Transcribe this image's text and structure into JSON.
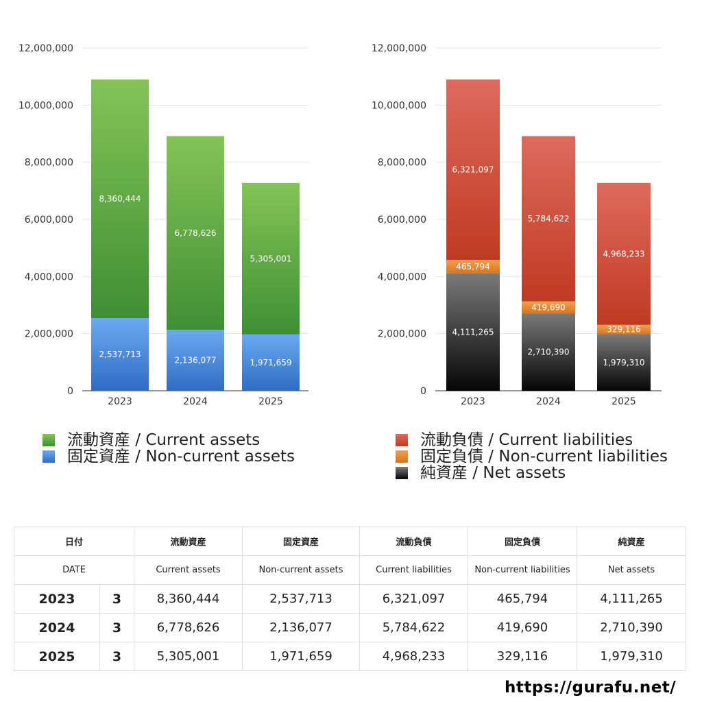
{
  "chart_data": [
    {
      "type": "bar",
      "stacked": true,
      "categories": [
        "2023",
        "2024",
        "2025"
      ],
      "ylim": [
        0,
        12000000
      ],
      "yticks": [
        "0",
        "2,000,000",
        "4,000,000",
        "6,000,000",
        "8,000,000",
        "10,000,000",
        "12,000,000"
      ],
      "grid": true,
      "legend_position": "bottom",
      "series": [
        {
          "name": "固定資産 / Non-current assets",
          "values": [
            2537713,
            2136077,
            1971659
          ],
          "labels": [
            "2,537,713",
            "2,136,077",
            "1,971,659"
          ],
          "color": "#4a8ae0"
        },
        {
          "name": "流動資産 / Current assets",
          "values": [
            8360444,
            6778626,
            5305001
          ],
          "labels": [
            "8,360,444",
            "6,778,626",
            "5,305,001"
          ],
          "color": "#5aa845"
        }
      ]
    },
    {
      "type": "bar",
      "stacked": true,
      "categories": [
        "2023",
        "2024",
        "2025"
      ],
      "ylim": [
        0,
        12000000
      ],
      "yticks": [
        "0",
        "2,000,000",
        "4,000,000",
        "6,000,000",
        "8,000,000",
        "10,000,000",
        "12,000,000"
      ],
      "grid": true,
      "legend_position": "bottom",
      "series": [
        {
          "name": "純資産 / Net assets",
          "values": [
            4111265,
            2710390,
            1979310
          ],
          "labels": [
            "4,111,265",
            "2,710,390",
            "1,979,310"
          ],
          "color": "#333333"
        },
        {
          "name": "固定負債 / Non-current liabilities",
          "values": [
            465794,
            419690,
            329116
          ],
          "labels": [
            "465,794",
            "419,690",
            "329,116"
          ],
          "color": "#e0862e"
        },
        {
          "name": "流動負債 / Current liabilities",
          "values": [
            6321097,
            5784622,
            4968233
          ],
          "labels": [
            "6,321,097",
            "5,784,622",
            "4,968,233"
          ],
          "color": "#cc4030"
        }
      ]
    }
  ],
  "legend_left": [
    "流動資産 / Current assets",
    "固定資産 / Non-current assets"
  ],
  "legend_right": [
    "流動負債 / Current liabilities",
    "固定負債 / Non-current liabilities",
    "純資産 / Net assets"
  ],
  "table": {
    "header_jp": [
      "日付",
      "",
      "流動資産",
      "固定資産",
      "流動負債",
      "固定負債",
      "純資産"
    ],
    "header_en": [
      "DATE",
      "",
      "Current assets",
      "Non-current assets",
      "Current liabilities",
      "Non-current liabilities",
      "Net assets"
    ],
    "rows": [
      [
        "2023",
        "3",
        "8,360,444",
        "2,537,713",
        "6,321,097",
        "465,794",
        "4,111,265"
      ],
      [
        "2024",
        "3",
        "6,778,626",
        "2,136,077",
        "5,784,622",
        "419,690",
        "2,710,390"
      ],
      [
        "2025",
        "3",
        "5,305,001",
        "1,971,659",
        "4,968,233",
        "329,116",
        "1,979,310"
      ]
    ]
  },
  "footer_url": "https://gurafu.net/"
}
